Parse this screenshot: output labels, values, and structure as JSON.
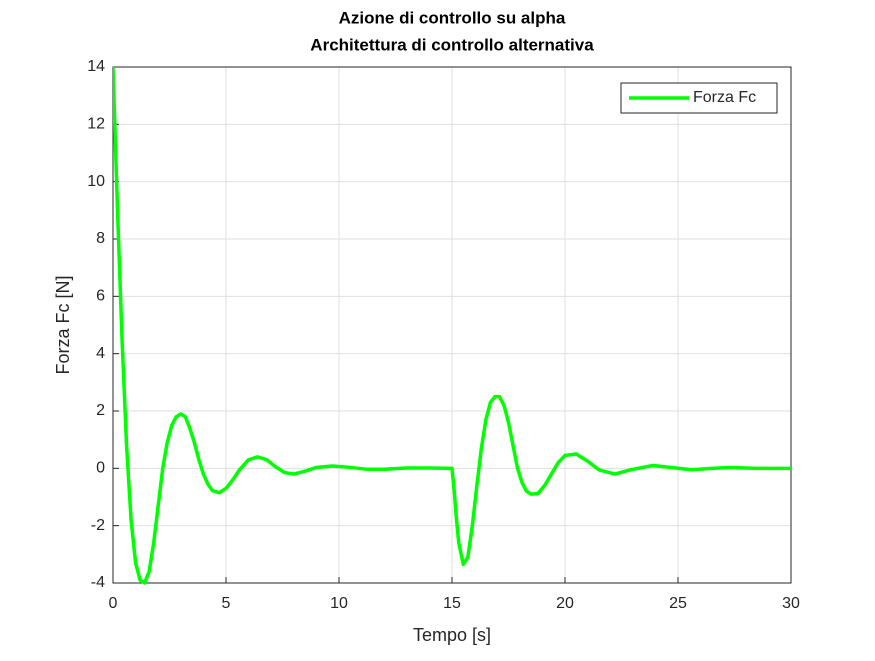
{
  "chart_data": {
    "type": "line",
    "title": [
      "Azione di controllo su alpha",
      "Architettura di controllo alternativa"
    ],
    "x_label": "Tempo [s]",
    "y_label": "Forza Fc [N]",
    "x": [
      0,
      0.2,
      0.4,
      0.6,
      0.8,
      1.0,
      1.2,
      1.4,
      1.6,
      1.8,
      2.0,
      2.2,
      2.4,
      2.6,
      2.8,
      3.0,
      3.2,
      3.4,
      3.6,
      3.8,
      4.0,
      4.2,
      4.4,
      4.7,
      5.0,
      5.3,
      5.6,
      6.0,
      6.4,
      6.8,
      7.2,
      7.6,
      8.0,
      8.5,
      9.0,
      9.7,
      10.4,
      11.2,
      12.0,
      13.0,
      14.0,
      15.0,
      15.1,
      15.2,
      15.3,
      15.5,
      15.7,
      15.9,
      16.1,
      16.3,
      16.5,
      16.7,
      16.9,
      17.1,
      17.3,
      17.5,
      17.7,
      17.9,
      18.1,
      18.3,
      18.5,
      18.8,
      19.1,
      19.4,
      19.7,
      20.0,
      20.5,
      21.0,
      21.5,
      22.2,
      22.9,
      23.9,
      24.8,
      25.6,
      26.5,
      27.3,
      28.5,
      30
    ],
    "series": [
      {
        "name": "Forza Fc",
        "color": "#00ff00",
        "values": [
          14,
          9,
          4.5,
          0.8,
          -1.8,
          -3.3,
          -3.9,
          -4.0,
          -3.6,
          -2.6,
          -1.3,
          0,
          0.9,
          1.5,
          1.8,
          1.9,
          1.8,
          1.4,
          0.9,
          0.3,
          -0.2,
          -0.55,
          -0.78,
          -0.85,
          -0.7,
          -0.4,
          -0.05,
          0.3,
          0.4,
          0.3,
          0.05,
          -0.15,
          -0.2,
          -0.1,
          0.03,
          0.08,
          0.04,
          -0.03,
          -0.03,
          0.01,
          0.01,
          0,
          -0.8,
          -1.8,
          -2.6,
          -3.35,
          -3.1,
          -2.0,
          -0.6,
          0.7,
          1.7,
          2.3,
          2.5,
          2.5,
          2.2,
          1.6,
          0.8,
          0,
          -0.5,
          -0.8,
          -0.9,
          -0.88,
          -0.6,
          -0.2,
          0.2,
          0.45,
          0.5,
          0.25,
          -0.05,
          -0.2,
          -0.05,
          0.1,
          0.02,
          -0.05,
          0,
          0.03,
          0,
          0
        ]
      }
    ],
    "xlim": [
      0,
      30
    ],
    "xticks": [
      0,
      5,
      10,
      15,
      20,
      25,
      30
    ],
    "ylim": [
      -4,
      14
    ],
    "yticks": [
      -4,
      -2,
      0,
      2,
      4,
      6,
      8,
      10,
      12,
      14
    ],
    "grid": true,
    "legend_position": "top-right"
  }
}
